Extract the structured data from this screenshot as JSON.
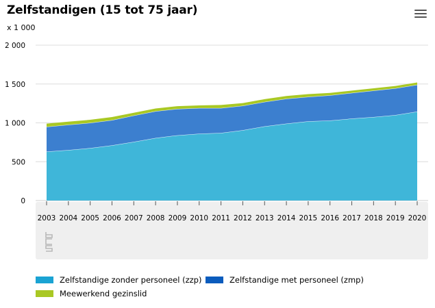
{
  "title": "Zelfstandigen (15 tot 75 jaar)",
  "unit_label": "x 1 000",
  "menu_icon": "hamburger-menu-icon",
  "logo_icon": "cbs-logo-icon",
  "colors": {
    "zzp": "#3fb6d9",
    "zmp": "#3c7fcf",
    "gezinslid": "#a9c824",
    "axis_text": "#000000",
    "grid": "#dcdcdc",
    "xaxis_band": "#efefef"
  },
  "chart_data": {
    "type": "area",
    "stacked": true,
    "title": "Zelfstandigen (15 tot 75 jaar)",
    "ylabel": "x 1 000",
    "ylim": [
      0,
      2000
    ],
    "yticks": [
      0,
      500,
      1000,
      1500,
      2000
    ],
    "ytick_labels": [
      "0",
      "500",
      "1 000",
      "1 500",
      "2 000"
    ],
    "grid": true,
    "legend_position": "bottom",
    "x": [
      "2003",
      "2004",
      "2005",
      "2006",
      "2007",
      "2008",
      "2009",
      "2010",
      "2011",
      "2012",
      "2013",
      "2014",
      "2015",
      "2016",
      "2017",
      "2018",
      "2019",
      "2020"
    ],
    "series": [
      {
        "name": "Zelfstandige zonder personeel (zzp)",
        "color": "#3fb6d9",
        "values": [
          630,
          650,
          675,
          710,
          755,
          805,
          840,
          860,
          870,
          905,
          955,
          990,
          1020,
          1030,
          1055,
          1075,
          1100,
          1145
        ]
      },
      {
        "name": "Zelfstandige met personeel (zmp)",
        "color": "#3c7fcf",
        "values": [
          320,
          325,
          325,
          325,
          340,
          345,
          340,
          330,
          320,
          315,
          315,
          320,
          315,
          325,
          330,
          340,
          345,
          345
        ]
      },
      {
        "name": "Meewerkend gezinslid",
        "color": "#a9c824",
        "values": [
          40,
          40,
          40,
          40,
          35,
          35,
          35,
          35,
          40,
          35,
          35,
          35,
          35,
          30,
          30,
          30,
          30,
          30
        ]
      }
    ]
  },
  "legend": [
    {
      "label": "Zelfstandige zonder personeel (zzp)",
      "color": "#3fb6d9"
    },
    {
      "label": "Zelfstandige met personeel (zmp)",
      "color": "#3c7fcf"
    },
    {
      "label": "Meewerkend gezinslid",
      "color": "#a9c824"
    }
  ]
}
